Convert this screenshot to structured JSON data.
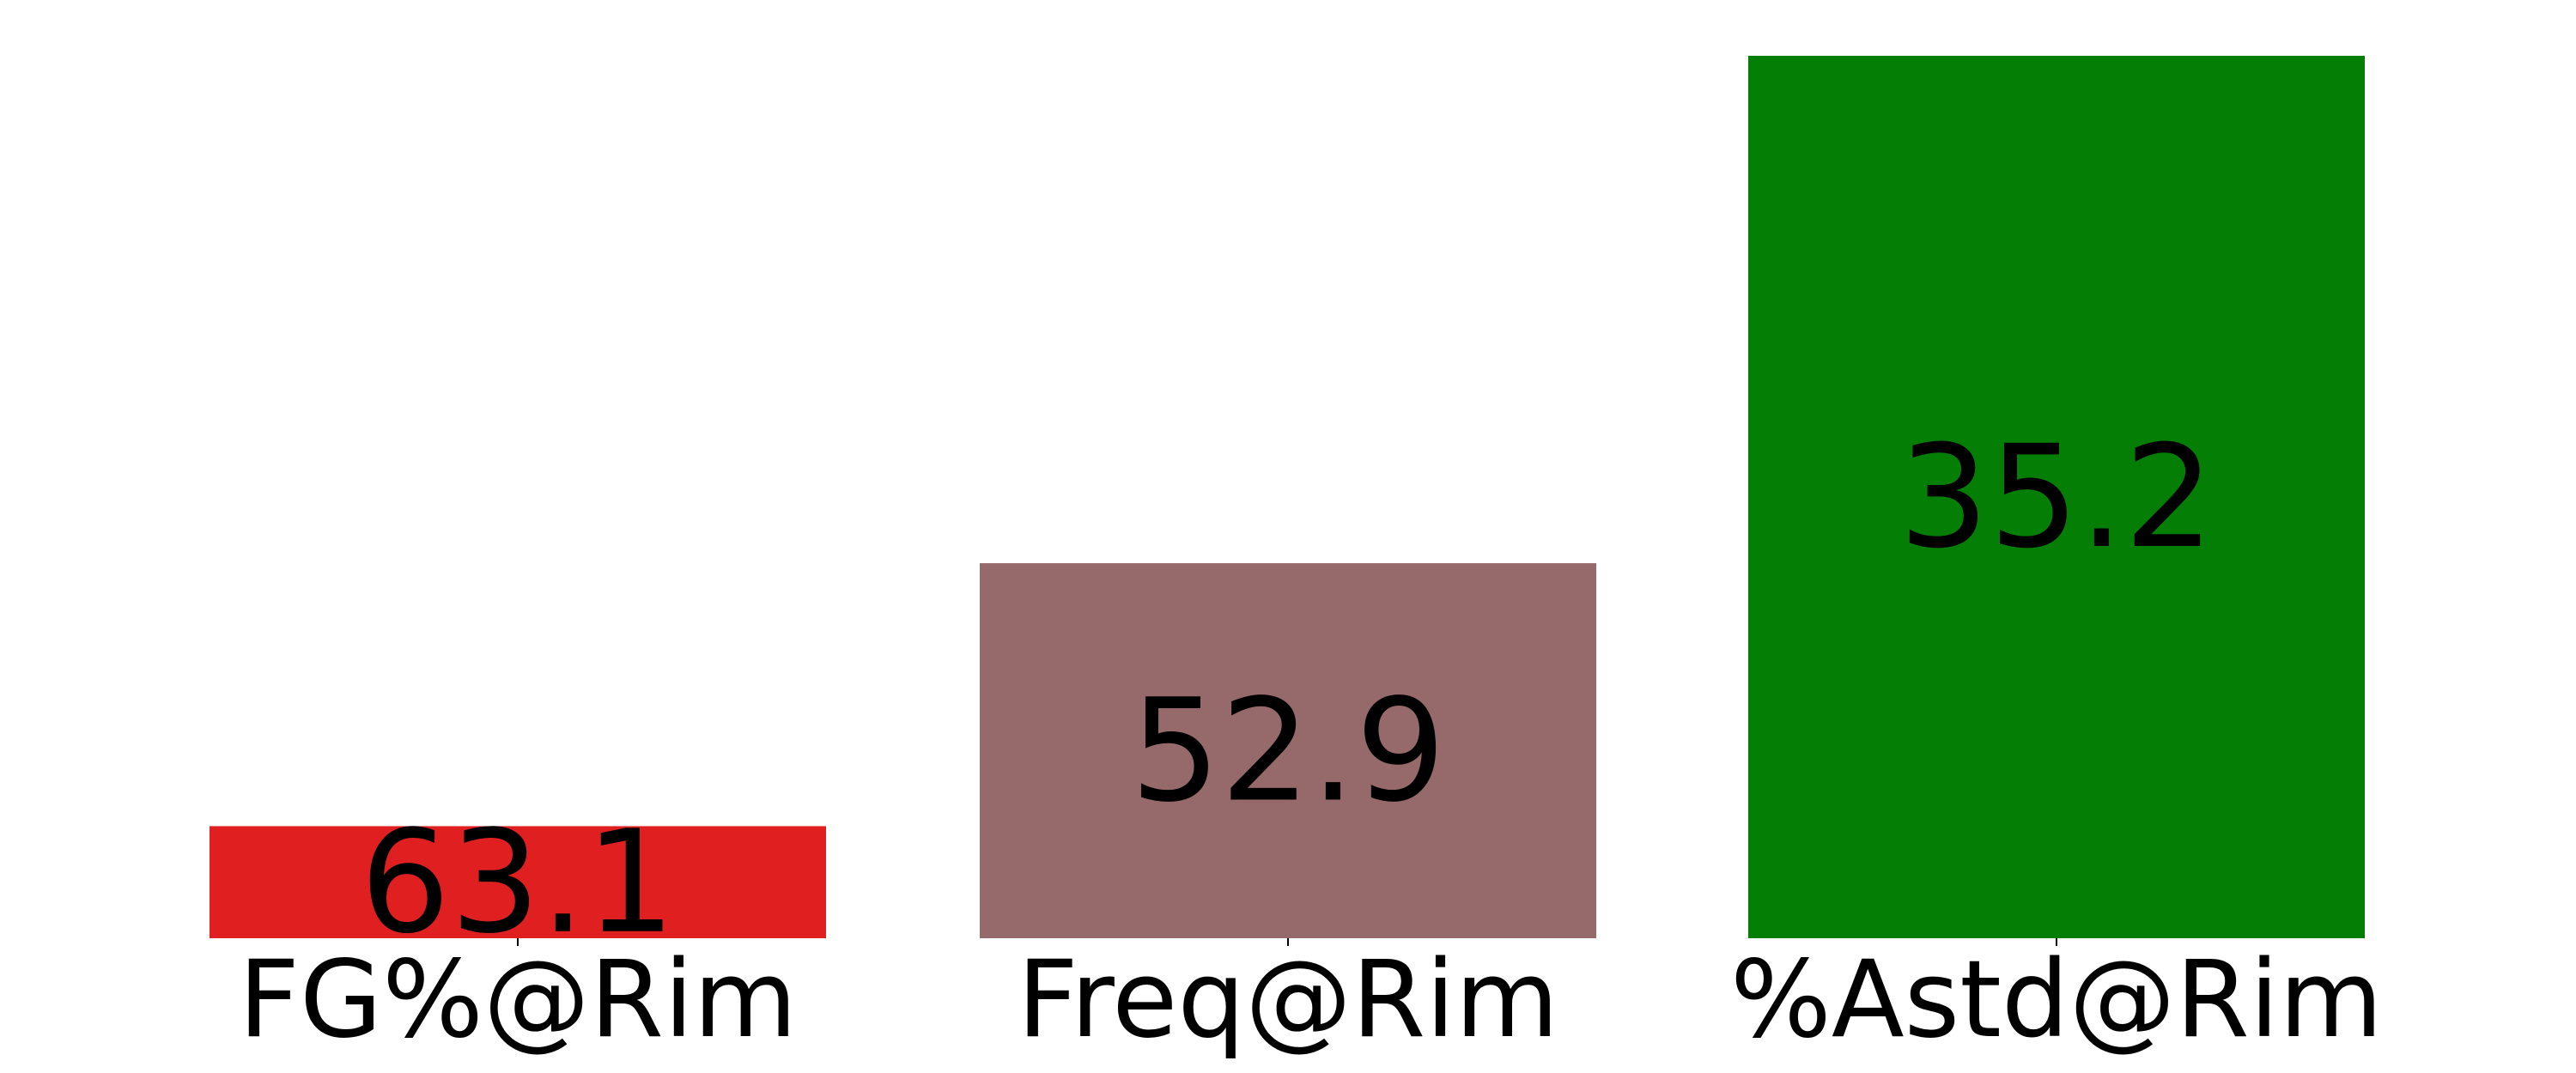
{
  "chart_data": {
    "type": "bar",
    "categories": [
      "FG%@Rim",
      "Freq@Rim",
      "%Astd@Rim"
    ],
    "value_labels": [
      "63.1",
      "52.9",
      "35.2"
    ],
    "relative_values": [
      0.127,
      0.425,
      1.0
    ],
    "colors": [
      "#e02020",
      "#966a6a",
      "#057e05"
    ],
    "title": "",
    "xlabel": "",
    "ylabel": "",
    "y_axis_visible": false,
    "x_ticks_visible": true,
    "grid": false,
    "legend": "none"
  }
}
